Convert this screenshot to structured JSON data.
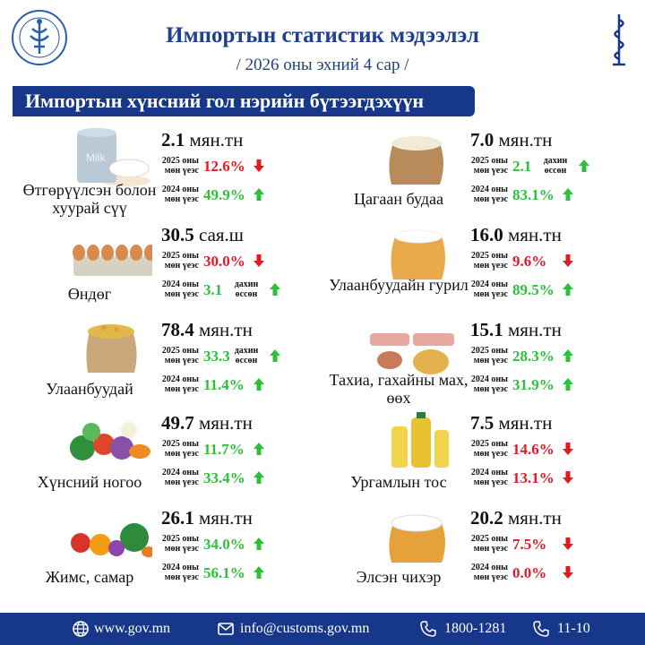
{
  "header": {
    "title": "Импортын статистик мэдээлэл",
    "subtitle": "/ 2026 оны эхний 4 сар /",
    "section_title": "Импортын хүнсний гол нэрийн бүтээгдэхүүн"
  },
  "labels": {
    "y2025": "2025 оны мөн үеэс",
    "y2024": "2024 оны мөн үеэс",
    "growth_note": "дахин өссөн"
  },
  "colors": {
    "brand": "#17378a",
    "up": "#2fbf3a",
    "down": "#e01b24"
  },
  "items": [
    {
      "name": "Өтгөрүүлсэн болон хуурай сүү",
      "value": "2.1",
      "unit": "мян.тн",
      "r2025": "12.6%",
      "d2025": "down",
      "r2024": "49.9%",
      "d2024": "up",
      "icon": "milk-powder-icon"
    },
    {
      "name": "Өндөг",
      "value": "30.5",
      "unit": "сая.ш",
      "r2025": "30.0%",
      "d2025": "down",
      "r2024": "3.1",
      "d2024": "up",
      "icon": "eggs-icon"
    },
    {
      "name": "Улаанбуудай",
      "value": "78.4",
      "unit": "мян.тн",
      "r2025": "33.3",
      "d2025": "up",
      "r2024": "11.4%",
      "d2024": "up",
      "icon": "wheat-sack-icon"
    },
    {
      "name": "Хүнсний ногоо",
      "value": "49.7",
      "unit": "мян.тн",
      "r2025": "11.7%",
      "d2025": "up",
      "r2024": "33.4%",
      "d2024": "up",
      "icon": "vegetables-icon"
    },
    {
      "name": "Жимс, самар",
      "value": "26.1",
      "unit": "мян.тн",
      "r2025": "34.0%",
      "d2025": "up",
      "r2024": "56.1%",
      "d2024": "up",
      "icon": "fruits-icon"
    },
    {
      "name": "Цагаан будаа",
      "value": "7.0",
      "unit": "мян.тн",
      "r2025": "2.1",
      "d2025": "up",
      "r2024": "83.1%",
      "d2024": "up",
      "icon": "rice-sack-icon"
    },
    {
      "name": "Улаанбуудайн гурил",
      "value": "16.0",
      "unit": "мян.тн",
      "r2025": "9.6%",
      "d2025": "down",
      "r2024": "89.5%",
      "d2024": "up",
      "icon": "flour-sack-icon"
    },
    {
      "name": "Тахиа, гахайны мах, өөх",
      "value": "15.1",
      "unit": "мян.тн",
      "r2025": "28.3%",
      "d2025": "up",
      "r2024": "31.9%",
      "d2024": "up",
      "icon": "meat-icon"
    },
    {
      "name": "Ургамлын тос",
      "value": "7.5",
      "unit": "мян.тн",
      "r2025": "14.6%",
      "d2025": "down",
      "r2024": "13.1%",
      "d2024": "down",
      "icon": "oil-bottles-icon"
    },
    {
      "name": "Элсэн чихэр",
      "value": "20.2",
      "unit": "мян.тн",
      "r2025": "7.5%",
      "d2025": "down",
      "r2024": "0.0%",
      "d2024": "down",
      "icon": "sugar-sack-icon"
    }
  ],
  "footer": {
    "website": "www.gov.mn",
    "email": "info@customs.gov.mn",
    "phone": "1800-1281",
    "hotline": "11-10"
  }
}
